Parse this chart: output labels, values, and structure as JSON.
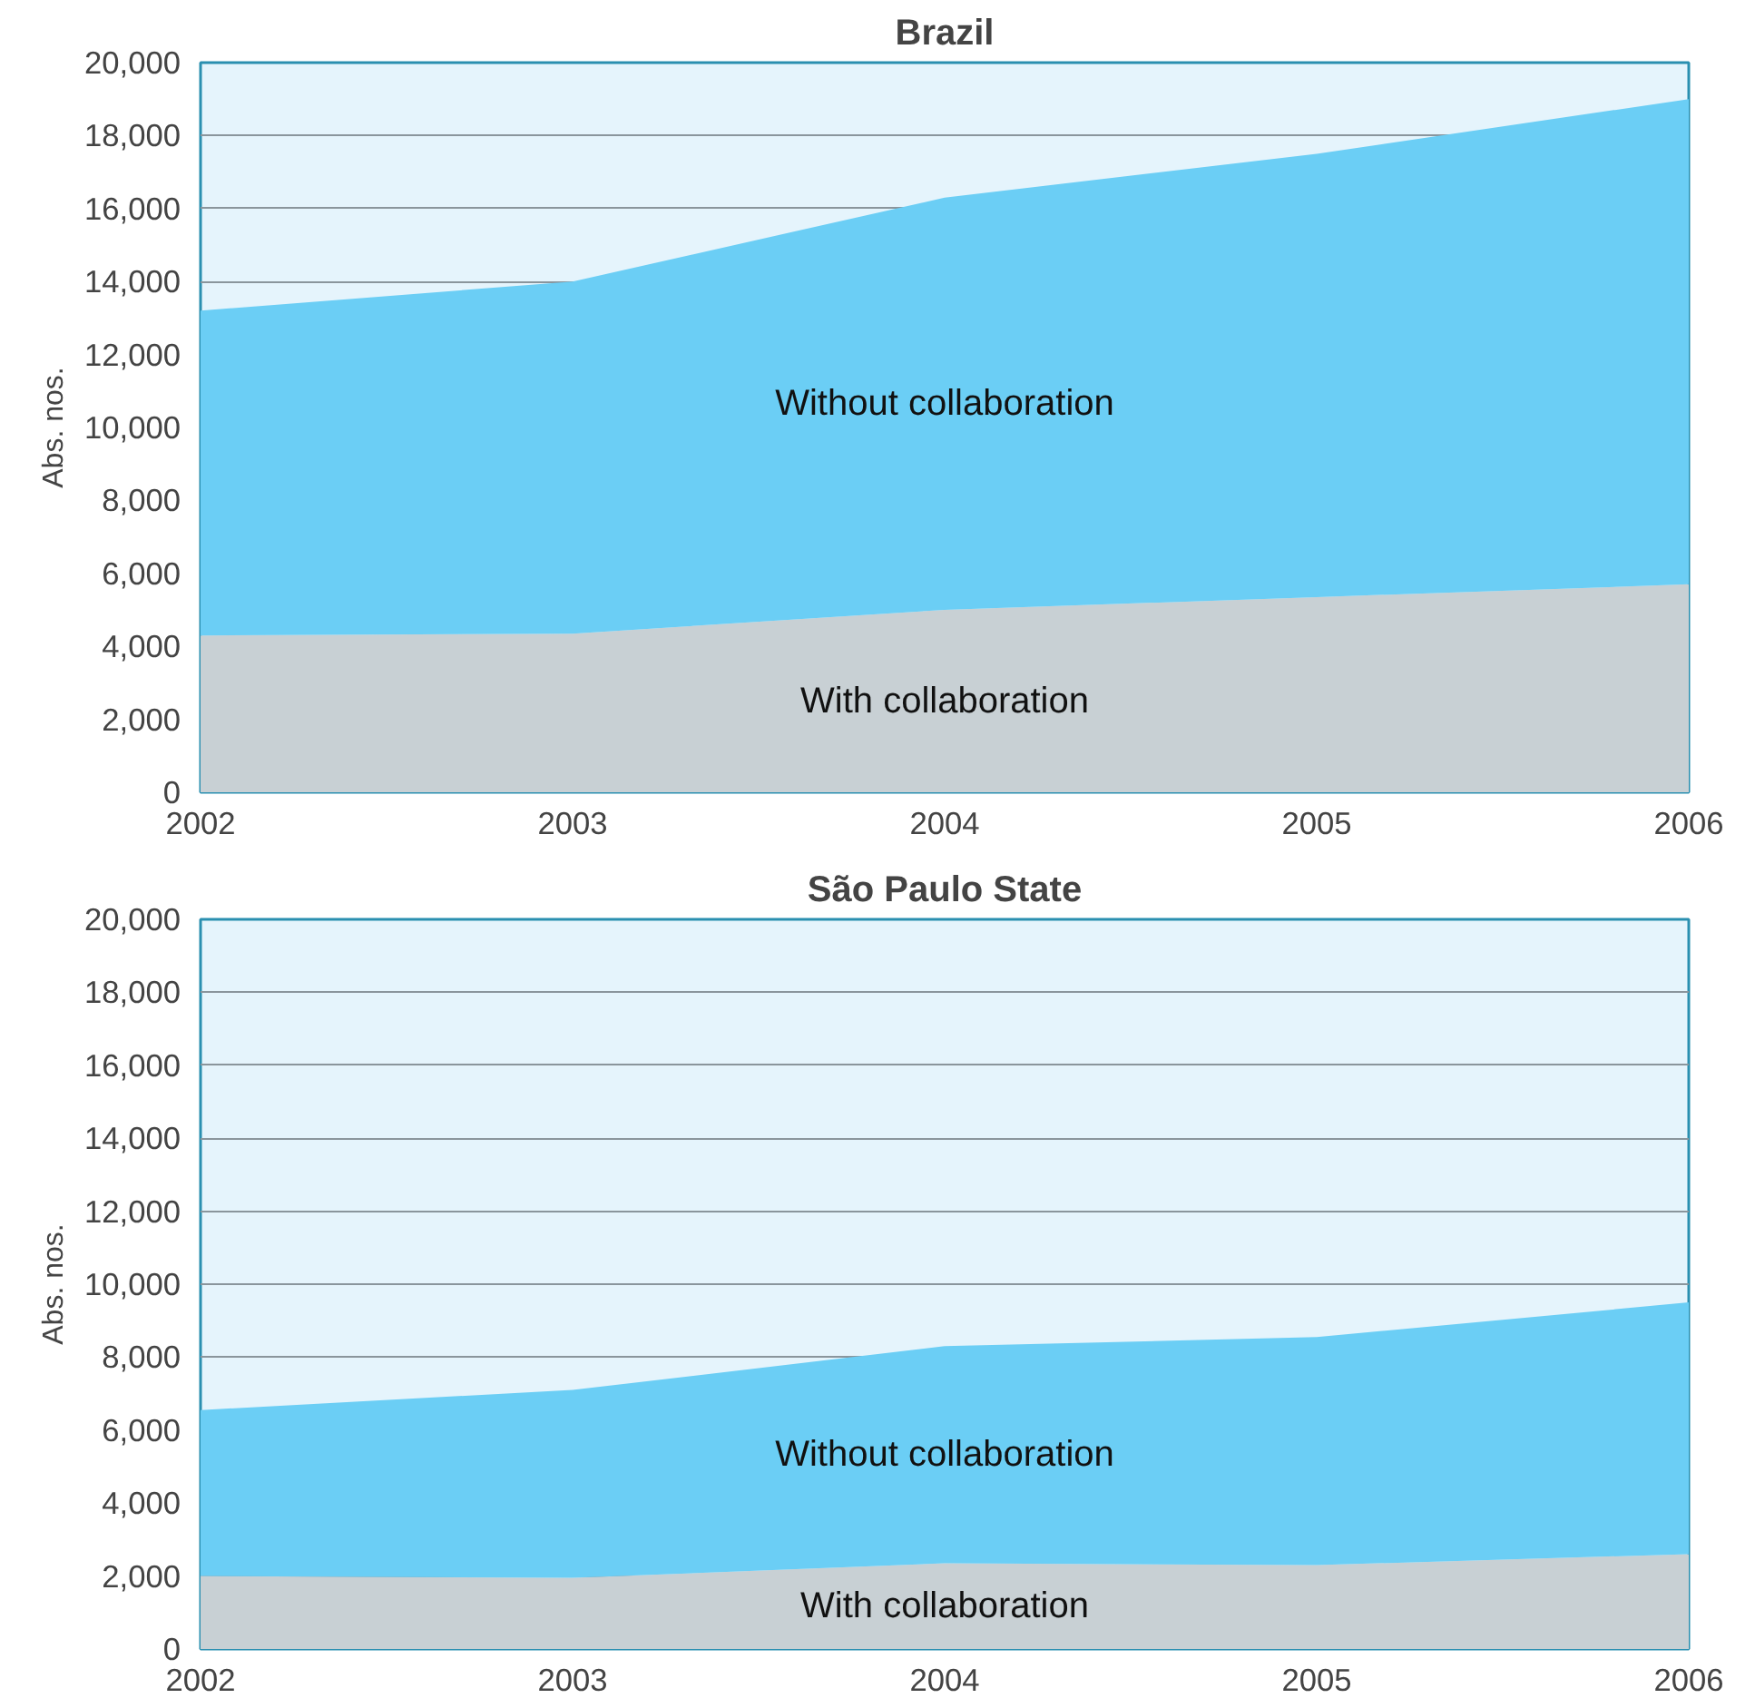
{
  "chart_data": [
    {
      "type": "area",
      "title": "Brazil",
      "ylabel": "Abs. nos.",
      "stacked": true,
      "x": [
        2002,
        2003,
        2004,
        2005,
        2006
      ],
      "xlim": [
        2002,
        2006
      ],
      "xticks": [
        2002,
        2003,
        2004,
        2005,
        2006
      ],
      "ylim": [
        0,
        20000
      ],
      "yticks": [
        {
          "value": 0,
          "label": "0"
        },
        {
          "value": 2000,
          "label": "2,000"
        },
        {
          "value": 4000,
          "label": "4,000"
        },
        {
          "value": 6000,
          "label": "6,000"
        },
        {
          "value": 8000,
          "label": "8,000"
        },
        {
          "value": 10000,
          "label": "10,000"
        },
        {
          "value": 12000,
          "label": "12,000"
        },
        {
          "value": 14000,
          "label": "14,000"
        },
        {
          "value": 16000,
          "label": "16,000"
        },
        {
          "value": 18000,
          "label": "18,000"
        },
        {
          "value": 20000,
          "label": "20,000"
        }
      ],
      "grid": "y",
      "series": [
        {
          "name": "With collaboration",
          "color": "#c8d0d4",
          "values": [
            4300,
            4350,
            5000,
            5350,
            5700
          ]
        },
        {
          "name": "Without collaboration",
          "color": "#6bcef5",
          "values": [
            8900,
            9650,
            11300,
            12150,
            13300
          ]
        }
      ]
    },
    {
      "type": "area",
      "title": "São Paulo State",
      "ylabel": "Abs. nos.",
      "stacked": true,
      "x": [
        2002,
        2003,
        2004,
        2005,
        2006
      ],
      "xlim": [
        2002,
        2006
      ],
      "xticks": [
        2002,
        2003,
        2004,
        2005,
        2006
      ],
      "ylim": [
        0,
        20000
      ],
      "yticks": [
        {
          "value": 0,
          "label": "0"
        },
        {
          "value": 2000,
          "label": "2,000"
        },
        {
          "value": 4000,
          "label": "4,000"
        },
        {
          "value": 6000,
          "label": "6,000"
        },
        {
          "value": 8000,
          "label": "8,000"
        },
        {
          "value": 10000,
          "label": "10,000"
        },
        {
          "value": 12000,
          "label": "12,000"
        },
        {
          "value": 14000,
          "label": "14,000"
        },
        {
          "value": 16000,
          "label": "16,000"
        },
        {
          "value": 18000,
          "label": "18,000"
        },
        {
          "value": 20000,
          "label": "20,000"
        }
      ],
      "grid": "y",
      "series": [
        {
          "name": "With collaboration",
          "color": "#c8d0d4",
          "values": [
            2000,
            1950,
            2350,
            2300,
            2600
          ]
        },
        {
          "name": "Without collaboration",
          "color": "#6bcef5",
          "values": [
            4550,
            5150,
            5950,
            6250,
            6900
          ]
        }
      ]
    }
  ]
}
